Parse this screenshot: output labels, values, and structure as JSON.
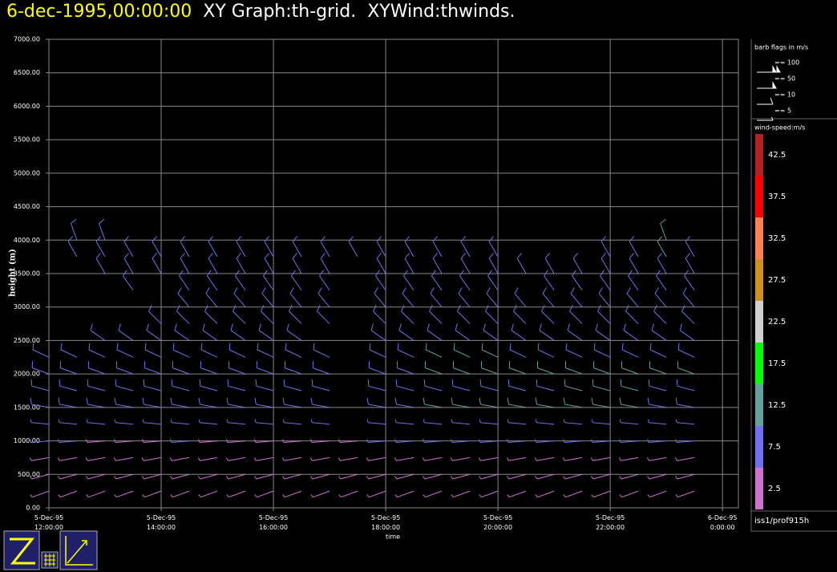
{
  "chart_data": {
    "type": "wind_barb",
    "title": "6-dec-1995,00:00:00",
    "subtitle": "XY Graph:th-grid.  XYWind:thwinds.",
    "ylabel": "height (m)",
    "xlabel": "time",
    "grid": true,
    "source": "iss1/prof915h",
    "xlim": [
      "1995-12-05T12:00",
      "1995-12-06T00:17"
    ],
    "xticks": [
      {
        "value": "1995-12-05T12:00",
        "label": "5-Dec-95 12:00:00"
      },
      {
        "value": "1995-12-05T14:00",
        "label": "5-Dec-95 14:00:00"
      },
      {
        "value": "1995-12-05T16:00",
        "label": "5-Dec-95 16:00:00"
      },
      {
        "value": "1995-12-05T18:00",
        "label": "5-Dec-95 18:00:00"
      },
      {
        "value": "1995-12-05T20:00",
        "label": "5-Dec-95 20:00:00"
      },
      {
        "value": "1995-12-05T22:00",
        "label": "5-Dec-95 22:00:00"
      },
      {
        "value": "1995-12-06T00:00",
        "label": "6-Dec-95 0:00:00"
      }
    ],
    "ylim": [
      0,
      7000
    ],
    "yticks": [
      {
        "value": 0,
        "label": "0.00"
      },
      {
        "value": 500,
        "label": "500.00"
      },
      {
        "value": 1000,
        "label": "1000.00"
      },
      {
        "value": 1500,
        "label": "1500.00"
      },
      {
        "value": 2000,
        "label": "2000.00"
      },
      {
        "value": 2500,
        "label": "2500.00"
      },
      {
        "value": 3000,
        "label": "3000.00"
      },
      {
        "value": 3500,
        "label": "3500.00"
      },
      {
        "value": 4000,
        "label": "4000.00"
      },
      {
        "value": 4500,
        "label": "4500.00"
      },
      {
        "value": 5000,
        "label": "5000.00"
      },
      {
        "value": 5500,
        "label": "5500.00"
      },
      {
        "value": 6000,
        "label": "6000.00"
      },
      {
        "value": 6500,
        "label": "6500.00"
      },
      {
        "value": 7000,
        "label": "7000.00"
      }
    ],
    "x": [
      "1995-12-05T12:00",
      "1995-12-05T12:30",
      "1995-12-05T13:00",
      "1995-12-05T13:30",
      "1995-12-05T14:00",
      "1995-12-05T14:30",
      "1995-12-05T15:00",
      "1995-12-05T15:30",
      "1995-12-05T16:00",
      "1995-12-05T16:30",
      "1995-12-05T17:00",
      "1995-12-05T17:30",
      "1995-12-05T18:00",
      "1995-12-05T18:30",
      "1995-12-05T19:00",
      "1995-12-05T19:30",
      "1995-12-05T20:00",
      "1995-12-05T20:30",
      "1995-12-05T21:00",
      "1995-12-05T21:30",
      "1995-12-05T22:00",
      "1995-12-05T22:30",
      "1995-12-05T23:00",
      "1995-12-05T23:30"
    ],
    "levels": [
      250,
      500,
      750,
      1000,
      1250,
      1500,
      1750,
      2000,
      2250,
      2500,
      2750,
      3000,
      3250,
      3500,
      3750,
      4000
    ],
    "speed": [
      [
        3,
        3,
        3,
        3,
        3,
        3,
        3,
        3,
        3,
        3,
        3,
        3,
        3,
        3,
        3,
        3,
        3,
        3,
        3,
        3,
        3,
        3,
        3,
        3
      ],
      [
        4,
        4,
        4,
        4,
        4,
        4,
        4,
        4,
        4,
        4,
        4,
        4,
        4,
        4,
        4,
        4,
        4,
        4,
        4,
        4,
        4,
        4,
        4,
        4
      ],
      [
        4,
        4,
        4,
        4,
        4,
        4,
        4,
        4,
        4,
        4,
        4,
        4,
        4,
        4,
        4,
        4,
        4,
        4,
        4,
        4,
        4,
        4,
        4,
        4
      ],
      [
        6,
        6,
        4,
        4,
        4,
        6,
        4,
        4,
        4,
        4,
        4,
        4,
        6,
        6,
        6,
        6,
        6,
        6,
        6,
        6,
        6,
        6,
        6,
        6
      ],
      [
        7,
        7,
        7,
        7,
        7,
        7,
        7,
        7,
        7,
        7,
        7,
        null,
        7,
        7,
        7,
        7,
        7,
        7,
        7,
        7,
        7,
        7,
        7,
        7
      ],
      [
        8,
        8,
        8,
        8,
        8,
        8,
        8,
        8,
        8,
        8,
        8,
        null,
        8,
        8,
        11,
        11,
        11,
        11,
        11,
        11,
        11,
        11,
        8,
        8
      ],
      [
        8,
        8,
        8,
        8,
        8,
        8,
        8,
        8,
        8,
        8,
        8,
        null,
        8,
        8,
        8,
        8,
        8,
        8,
        8,
        11,
        11,
        11,
        8,
        8
      ],
      [
        9,
        9,
        9,
        9,
        9,
        9,
        9,
        9,
        9,
        9,
        9,
        null,
        9,
        9,
        12,
        12,
        12,
        12,
        12,
        12,
        12,
        12,
        12,
        12
      ],
      [
        9,
        9,
        9,
        9,
        9,
        9,
        9,
        9,
        9,
        9,
        9,
        null,
        9,
        9,
        12,
        12,
        12,
        9,
        9,
        9,
        9,
        9,
        9,
        9
      ],
      [
        null,
        null,
        8,
        8,
        8,
        8,
        8,
        8,
        8,
        8,
        null,
        null,
        8,
        8,
        8,
        8,
        8,
        8,
        8,
        8,
        8,
        8,
        8,
        8
      ],
      [
        null,
        null,
        null,
        null,
        8,
        8,
        8,
        8,
        8,
        8,
        8,
        null,
        8,
        8,
        8,
        8,
        8,
        8,
        8,
        8,
        8,
        8,
        8,
        8
      ],
      [
        null,
        null,
        null,
        null,
        null,
        8,
        8,
        8,
        8,
        8,
        8,
        null,
        8,
        8,
        8,
        8,
        8,
        8,
        8,
        8,
        8,
        8,
        8,
        8
      ],
      [
        null,
        null,
        null,
        8,
        null,
        8,
        8,
        8,
        8,
        8,
        8,
        null,
        8,
        8,
        8,
        8,
        8,
        null,
        8,
        8,
        8,
        8,
        8,
        8
      ],
      [
        null,
        null,
        8,
        8,
        8,
        8,
        8,
        8,
        8,
        8,
        8,
        null,
        8,
        8,
        8,
        8,
        8,
        8,
        8,
        8,
        8,
        8,
        8,
        8
      ],
      [
        null,
        8,
        8,
        8,
        8,
        8,
        8,
        8,
        8,
        8,
        8,
        8,
        8,
        8,
        8,
        8,
        8,
        null,
        null,
        null,
        8,
        8,
        12,
        8
      ],
      [
        null,
        8,
        8,
        null,
        null,
        null,
        null,
        null,
        null,
        null,
        null,
        null,
        null,
        null,
        null,
        null,
        null,
        null,
        null,
        null,
        null,
        null,
        12,
        null
      ]
    ],
    "direction": [
      [
        250,
        250,
        250,
        250,
        250,
        250,
        250,
        250,
        250,
        250,
        250,
        250,
        250,
        250,
        250,
        250,
        250,
        250,
        250,
        250,
        250,
        250,
        250,
        250
      ],
      [
        255,
        255,
        255,
        255,
        255,
        255,
        255,
        255,
        255,
        255,
        255,
        255,
        255,
        255,
        255,
        255,
        255,
        255,
        255,
        255,
        255,
        255,
        255,
        255
      ],
      [
        260,
        260,
        260,
        260,
        260,
        260,
        260,
        260,
        260,
        260,
        260,
        260,
        260,
        260,
        260,
        260,
        260,
        260,
        260,
        260,
        260,
        260,
        260,
        260
      ],
      [
        265,
        265,
        265,
        265,
        265,
        265,
        265,
        265,
        265,
        265,
        265,
        265,
        265,
        265,
        265,
        265,
        265,
        265,
        265,
        265,
        265,
        265,
        265,
        265
      ],
      [
        275,
        275,
        275,
        275,
        275,
        275,
        275,
        275,
        275,
        275,
        275,
        null,
        275,
        275,
        275,
        275,
        275,
        275,
        275,
        275,
        275,
        275,
        275,
        275
      ],
      [
        280,
        280,
        280,
        280,
        280,
        280,
        280,
        280,
        280,
        280,
        280,
        null,
        280,
        280,
        280,
        280,
        280,
        280,
        280,
        280,
        280,
        280,
        280,
        280
      ],
      [
        285,
        285,
        285,
        285,
        285,
        285,
        285,
        285,
        285,
        285,
        285,
        null,
        285,
        285,
        285,
        285,
        285,
        285,
        285,
        285,
        285,
        285,
        285,
        285
      ],
      [
        290,
        290,
        290,
        290,
        290,
        290,
        290,
        290,
        290,
        290,
        290,
        null,
        290,
        290,
        290,
        290,
        290,
        290,
        290,
        290,
        290,
        290,
        290,
        290
      ],
      [
        295,
        295,
        295,
        295,
        295,
        295,
        295,
        295,
        295,
        295,
        295,
        null,
        295,
        295,
        295,
        295,
        295,
        295,
        295,
        295,
        295,
        295,
        295,
        295
      ],
      [
        null,
        null,
        305,
        305,
        305,
        305,
        305,
        305,
        305,
        305,
        null,
        null,
        305,
        305,
        305,
        305,
        305,
        305,
        305,
        305,
        305,
        305,
        305,
        305
      ],
      [
        null,
        null,
        null,
        null,
        315,
        315,
        315,
        315,
        315,
        315,
        315,
        null,
        315,
        315,
        315,
        315,
        315,
        315,
        315,
        315,
        315,
        315,
        315,
        315
      ],
      [
        null,
        null,
        null,
        null,
        null,
        320,
        320,
        320,
        320,
        320,
        320,
        null,
        320,
        320,
        320,
        320,
        320,
        320,
        320,
        320,
        320,
        320,
        320,
        320
      ],
      [
        null,
        null,
        null,
        325,
        null,
        325,
        325,
        325,
        325,
        325,
        325,
        null,
        325,
        325,
        325,
        325,
        325,
        null,
        325,
        325,
        325,
        325,
        325,
        325
      ],
      [
        null,
        null,
        330,
        330,
        330,
        330,
        330,
        330,
        330,
        330,
        330,
        null,
        330,
        330,
        330,
        330,
        330,
        330,
        330,
        330,
        330,
        330,
        330,
        330
      ],
      [
        null,
        330,
        330,
        330,
        330,
        330,
        330,
        330,
        330,
        330,
        330,
        330,
        330,
        330,
        330,
        330,
        330,
        null,
        null,
        null,
        330,
        330,
        330,
        330
      ],
      [
        null,
        340,
        340,
        null,
        null,
        null,
        null,
        null,
        null,
        null,
        null,
        null,
        null,
        null,
        null,
        null,
        null,
        null,
        null,
        null,
        null,
        null,
        340,
        null
      ]
    ],
    "colorbar": {
      "title": "wind-speed:m/s",
      "clim": [
        0,
        45
      ],
      "colors": [
        "#d070d0",
        "#7070f0",
        "#60a0a0",
        "#00ff00",
        "#d0d0d0",
        "#d09020",
        "#ff8050",
        "#ff0000",
        "#b02020"
      ],
      "ticks": [
        2.5,
        7.5,
        12.5,
        17.5,
        22.5,
        27.5,
        32.5,
        37.5,
        42.5
      ]
    },
    "barb_legend": {
      "title": "barb flags in m/s",
      "items": [
        {
          "value": 100,
          "label": "== 100"
        },
        {
          "value": 50,
          "label": "== 50"
        },
        {
          "value": 10,
          "label": "== 10"
        },
        {
          "value": 5,
          "label": "== 5"
        }
      ]
    }
  }
}
